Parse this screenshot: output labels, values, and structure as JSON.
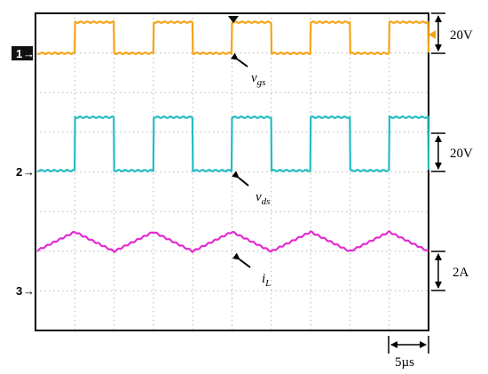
{
  "chart_data": {
    "type": "line",
    "title": "",
    "grid": true,
    "time_scale": {
      "label": "5µs",
      "value": 5,
      "unit": "µs",
      "divisions": 10
    },
    "channels": [
      {
        "marker": "1",
        "name": "v",
        "sub": "gs",
        "color": "#f5a316",
        "scale_label": "20V",
        "waveform": "square",
        "low": 0,
        "high": 1,
        "period_div": 2,
        "duty": 0.5
      },
      {
        "marker": "2",
        "name": "v",
        "sub": "ds",
        "color": "#23bdc2",
        "scale_label": "20V",
        "waveform": "square",
        "low": 0,
        "high": 1,
        "period_div": 2,
        "duty": 0.5
      },
      {
        "marker": "3",
        "name": "i",
        "sub": "L",
        "color": "#e32ad2",
        "scale_label": "2A",
        "waveform": "triangle",
        "low": 0,
        "high": 0.5,
        "period_div": 2
      }
    ]
  }
}
